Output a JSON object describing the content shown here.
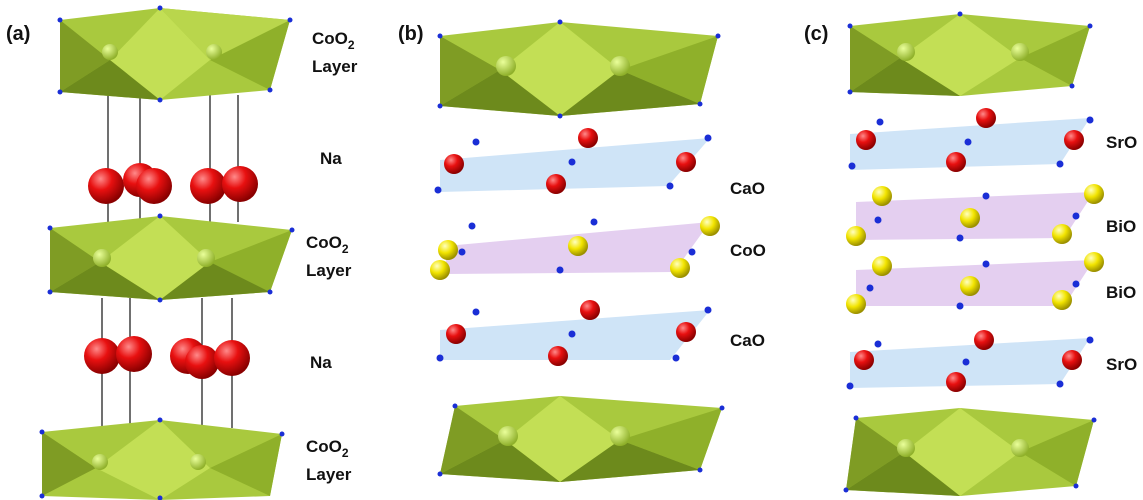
{
  "panels": [
    {
      "id": "a",
      "label": "(a)"
    },
    {
      "id": "b",
      "label": "(b)"
    },
    {
      "id": "c",
      "label": "(c)"
    }
  ],
  "panel_a": {
    "layers": [
      "CoO",
      "Layer",
      "Na",
      "CoO",
      "Layer",
      "Na",
      "CoO",
      "Layer"
    ],
    "subscript": "2"
  },
  "panel_b": {
    "layers": [
      "CaO",
      "CoO",
      "CaO"
    ]
  },
  "panel_c": {
    "layers": [
      "SrO",
      "BiO",
      "BiO",
      "SrO"
    ]
  },
  "colors": {
    "octahedra_light": "#b5d44a",
    "octahedra_mid": "#8fb02a",
    "octahedra_dark": "#55701a",
    "sodium": "#e01010",
    "oxygen": "#1a2ed6",
    "cobalt_bismuth": "#f2e400",
    "blue_plane": "#cfe4f7",
    "purple_plane": "#e4cff0"
  }
}
